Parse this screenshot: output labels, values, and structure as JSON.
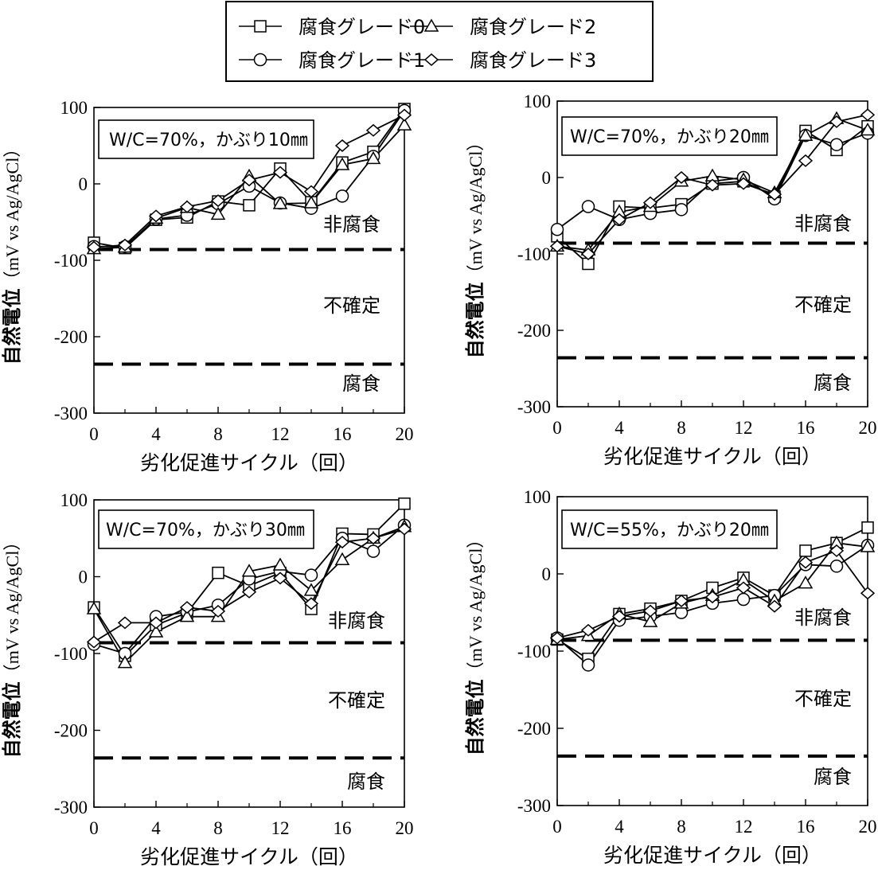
{
  "legend": {
    "items": [
      {
        "label": "腐食グレード0",
        "marker": "square"
      },
      {
        "label": "腐食グレード2",
        "marker": "triangle"
      },
      {
        "label": "腐食グレード1",
        "marker": "circle"
      },
      {
        "label": "腐食グレード3",
        "marker": "diamond"
      }
    ]
  },
  "chart_data": [
    {
      "type": "line",
      "annotation": "W/C=70%，かぶり10㎜",
      "xlabel": "劣化促進サイクル（回）",
      "ylabel_main": "自然電位",
      "ylabel_unit": "（mV vs Ag/AgCl）",
      "xlim": [
        0,
        20
      ],
      "ylim": [
        -300,
        100
      ],
      "xticks": [
        "0",
        "4",
        "8",
        "12",
        "16",
        "20"
      ],
      "yticks": [
        "100",
        "0",
        "-100",
        "-200",
        "-300"
      ],
      "thresholds": [
        -86,
        -236
      ],
      "zone_labels": {
        "noncorrosion": "非腐食",
        "uncertain": "不確定",
        "corrosion": "腐食"
      },
      "x": [
        0,
        2,
        4,
        6,
        8,
        10,
        12,
        14,
        16,
        18,
        20
      ],
      "series": [
        {
          "name": "腐食グレード0",
          "values": [
            -77,
            -84,
            -47,
            -44,
            -23,
            -28,
            20,
            -24,
            28,
            42,
            98
          ]
        },
        {
          "name": "腐食グレード1",
          "values": [
            -82,
            -82,
            -46,
            -41,
            -26,
            -3,
            -25,
            -32,
            -16,
            36,
            96
          ]
        },
        {
          "name": "腐食グレード2",
          "values": [
            -85,
            -83,
            -45,
            -31,
            -40,
            10,
            -26,
            -25,
            25,
            33,
            77
          ]
        },
        {
          "name": "腐食グレード3",
          "values": [
            -83,
            -80,
            -42,
            -30,
            -22,
            5,
            15,
            -10,
            50,
            70,
            90
          ]
        }
      ]
    },
    {
      "type": "line",
      "annotation": "W/C=70%，かぶり20㎜",
      "xlabel": "劣化促進サイクル（回）",
      "ylabel_main": "自然電位",
      "ylabel_unit": "（mV vs Ag/AgCl）",
      "xlim": [
        0,
        20
      ],
      "ylim": [
        -300,
        100
      ],
      "xticks": [
        "0",
        "4",
        "8",
        "12",
        "16",
        "20"
      ],
      "yticks": [
        "100",
        "0",
        "-100",
        "-200",
        "-300"
      ],
      "thresholds": [
        -86,
        -236
      ],
      "zone_labels": {
        "noncorrosion": "非腐食",
        "uncertain": "不確定",
        "corrosion": "腐食"
      },
      "x": [
        0,
        2,
        4,
        6,
        8,
        10,
        12,
        14,
        16,
        18,
        20
      ],
      "series": [
        {
          "name": "腐食グレード0",
          "values": [
            -77,
            -113,
            -38,
            -40,
            -35,
            -8,
            -5,
            -25,
            61,
            36,
            67
          ]
        },
        {
          "name": "腐食グレード1",
          "values": [
            -68,
            -38,
            -55,
            -47,
            -42,
            -5,
            0,
            -28,
            55,
            43,
            58
          ]
        },
        {
          "name": "腐食グレード2",
          "values": [
            -90,
            -95,
            -45,
            -38,
            -5,
            2,
            -3,
            -20,
            55,
            77,
            62
          ]
        },
        {
          "name": "腐食グレード3",
          "values": [
            -90,
            -100,
            -55,
            -33,
            0,
            -10,
            -8,
            -22,
            22,
            73,
            82
          ]
        }
      ]
    },
    {
      "type": "line",
      "annotation": "W/C=70%，かぶり30㎜",
      "xlabel": "劣化促進サイクル（回）",
      "ylabel_main": "自然電位",
      "ylabel_unit": "（mV vs Ag/AgCl）",
      "xlim": [
        0,
        20
      ],
      "ylim": [
        -300,
        100
      ],
      "xticks": [
        "0",
        "4",
        "8",
        "12",
        "16",
        "20"
      ],
      "yticks": [
        "100",
        "0",
        "-100",
        "-200",
        "-300"
      ],
      "thresholds": [
        -86,
        -236
      ],
      "zone_labels": {
        "noncorrosion": "非腐食",
        "uncertain": "不確定",
        "corrosion": "腐食"
      },
      "x": [
        0,
        2,
        4,
        6,
        8,
        10,
        12,
        14,
        16,
        18,
        20
      ],
      "series": [
        {
          "name": "腐食グレード0",
          "values": [
            -40,
            -103,
            -63,
            -47,
            5,
            -12,
            5,
            -42,
            56,
            55,
            95
          ]
        },
        {
          "name": "腐食グレード1",
          "values": [
            -88,
            -100,
            -52,
            -46,
            -37,
            -3,
            7,
            2,
            50,
            33,
            67
          ]
        },
        {
          "name": "腐食グレード2",
          "values": [
            -42,
            -112,
            -72,
            -52,
            -52,
            7,
            15,
            -18,
            22,
            50,
            65
          ]
        },
        {
          "name": "腐食グレード3",
          "values": [
            -85,
            -60,
            -60,
            -40,
            -45,
            -20,
            -2,
            -35,
            45,
            50,
            62
          ]
        }
      ]
    },
    {
      "type": "line",
      "annotation": "W/C=55%，かぶり20㎜",
      "xlabel": "劣化促進サイクル（回）",
      "ylabel_main": "自然電位",
      "ylabel_unit": "（mV vs Ag/AgCl）",
      "xlim": [
        0,
        20
      ],
      "ylim": [
        -300,
        100
      ],
      "xticks": [
        "0",
        "4",
        "8",
        "12",
        "16",
        "20"
      ],
      "yticks": [
        "100",
        "0",
        "-100",
        "-200",
        "-300"
      ],
      "thresholds": [
        -86,
        -236
      ],
      "zone_labels": {
        "noncorrosion": "非腐食",
        "uncertain": "不確定",
        "corrosion": "腐食"
      },
      "x": [
        0,
        2,
        4,
        6,
        8,
        10,
        12,
        14,
        16,
        18,
        20
      ],
      "series": [
        {
          "name": "腐食グレード0",
          "values": [
            -85,
            -110,
            -52,
            -45,
            -35,
            -18,
            -5,
            -28,
            30,
            40,
            60
          ]
        },
        {
          "name": "腐食グレード1",
          "values": [
            -83,
            -118,
            -60,
            -55,
            -50,
            -38,
            -33,
            -28,
            12,
            10,
            37
          ]
        },
        {
          "name": "腐食グレード2",
          "values": [
            -85,
            -80,
            -52,
            -62,
            -38,
            -28,
            -8,
            -35,
            -12,
            40,
            35
          ]
        },
        {
          "name": "腐食グレード3",
          "values": [
            -83,
            -73,
            -55,
            -48,
            -35,
            -30,
            -18,
            -42,
            15,
            30,
            -25
          ]
        }
      ]
    }
  ]
}
